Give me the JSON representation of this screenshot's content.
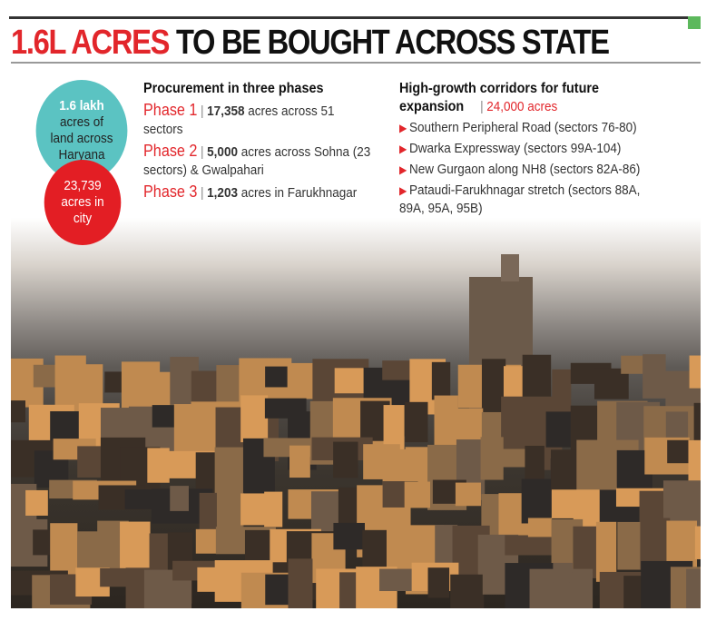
{
  "title": {
    "highlight": "1.6L ACRES",
    "rest": "TO BE BOUGHT ACROSS STATE"
  },
  "circles": {
    "state": {
      "value": "1.6 lakh",
      "lines": [
        "acres of",
        "land across",
        "Haryana"
      ]
    },
    "city": {
      "value": "23,739",
      "lines": [
        "acres in",
        "city"
      ]
    }
  },
  "procurement": {
    "heading": "Procurement in three phases",
    "phases": [
      {
        "label": "Phase 1",
        "value": "17,358",
        "text": "acres across 51 sectors"
      },
      {
        "label": "Phase 2",
        "value": "5,000",
        "text": "acres across Sohna (23 sectors) & Gwalpahari"
      },
      {
        "label": "Phase 3",
        "value": "1,203",
        "text": "acres in Farukhnagar"
      }
    ]
  },
  "corridors": {
    "heading": "High-growth corridors for future expansion",
    "total": "24,000 acres",
    "items": [
      "Southern Peripheral Road (sectors 76-80)",
      "Dwarka Expressway (sectors 99A-104)",
      "New Gurgaon along NH8 (sectors 82A-86)",
      "Pataudi-Farukhnagar stretch (sectors 88A, 89A, 95A, 95B)"
    ]
  },
  "colors": {
    "accent": "#e2262b",
    "teal": "#5bc3c2",
    "green": "#5cb85c"
  }
}
